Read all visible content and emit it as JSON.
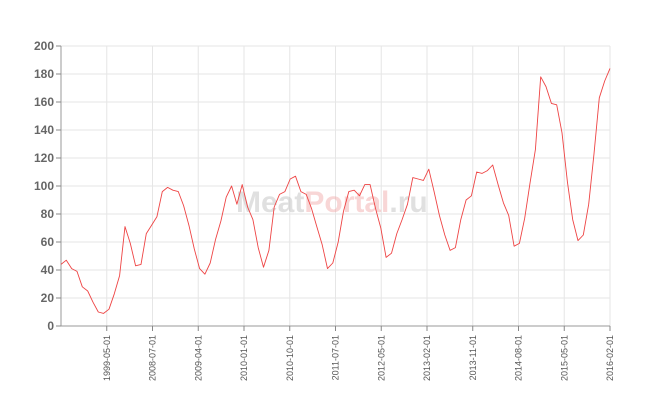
{
  "chart_data": {
    "type": "line",
    "x_tick_labels": [
      "1999-05-01",
      "2008-07-01",
      "2009-04-01",
      "2010-01-01",
      "2010-10-01",
      "2011-07-01",
      "2012-05-01",
      "2013-02-01",
      "2013-11-01",
      "2014-08-01",
      "2015-05-01",
      "2016-02-01"
    ],
    "y_ticks": [
      0,
      20,
      40,
      60,
      80,
      100,
      120,
      140,
      160,
      180,
      200
    ],
    "ylim": [
      0,
      200
    ],
    "grid": true,
    "series": [
      {
        "color": "#ee4444",
        "values": [
          44,
          47,
          41,
          39,
          28,
          25,
          17,
          10,
          9,
          12,
          23,
          36,
          71,
          59,
          43,
          44,
          66,
          72,
          78,
          96,
          99,
          97,
          96,
          86,
          72,
          55,
          41,
          37,
          45,
          62,
          75,
          92,
          100,
          87,
          101,
          85,
          76,
          56,
          42,
          54,
          85,
          94,
          96,
          105,
          107,
          96,
          94,
          84,
          71,
          58,
          41,
          45,
          60,
          82,
          96,
          97,
          93,
          101,
          101,
          84,
          70,
          49,
          52,
          66,
          76,
          87,
          106,
          105,
          104,
          112,
          96,
          79,
          65,
          54,
          56,
          76,
          90,
          93,
          110,
          109,
          111,
          115,
          101,
          88,
          79,
          57,
          59,
          77,
          102,
          126,
          178,
          171,
          159,
          158,
          138,
          103,
          76,
          61,
          65,
          87,
          123,
          163,
          175,
          184
        ]
      }
    ]
  },
  "watermark": {
    "part1": "Meat",
    "part2": "Portal",
    "part3": ".ru"
  }
}
